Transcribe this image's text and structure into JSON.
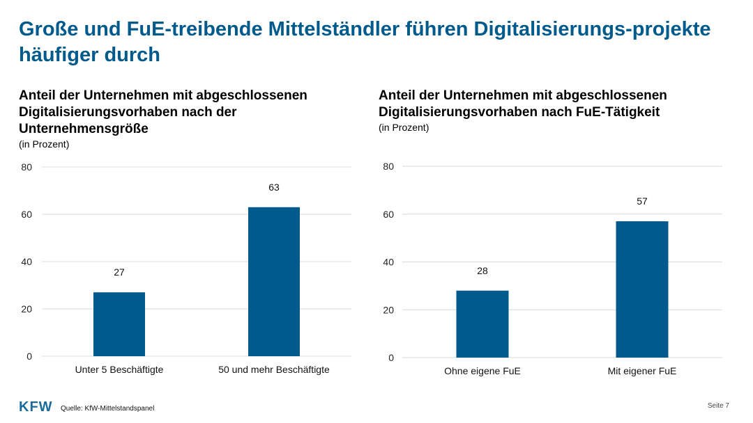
{
  "title": "Große und FuE-treibende Mittelständler führen Digitalisierungs-projekte häufiger durch",
  "chart_data": [
    {
      "type": "bar",
      "title": "Anteil der Unternehmen mit abgeschlossenen Digitalisierungsvorhaben nach der Unternehmensgröße",
      "subtitle": "(in Prozent)",
      "categories": [
        "Unter 5 Beschäftigte",
        "50 und mehr Beschäftigte"
      ],
      "values": [
        27,
        63
      ],
      "ylim": [
        0,
        80
      ],
      "yticks": [
        0,
        20,
        40,
        60,
        80
      ],
      "grid": true,
      "color": "#005a8c"
    },
    {
      "type": "bar",
      "title": "Anteil der Unternehmen mit abgeschlossenen Digitalisierungsvorhaben nach FuE-Tätigkeit",
      "subtitle": "(in Prozent)",
      "categories": [
        "Ohne eigene FuE",
        "Mit eigener FuE"
      ],
      "values": [
        28,
        57
      ],
      "ylim": [
        0,
        80
      ],
      "yticks": [
        0,
        20,
        40,
        60,
        80
      ],
      "grid": true,
      "color": "#005a8c"
    }
  ],
  "footer": {
    "logo": "KFW",
    "source": "Quelle: KfW-Mittelstandspanel",
    "page": "Seite 7"
  }
}
